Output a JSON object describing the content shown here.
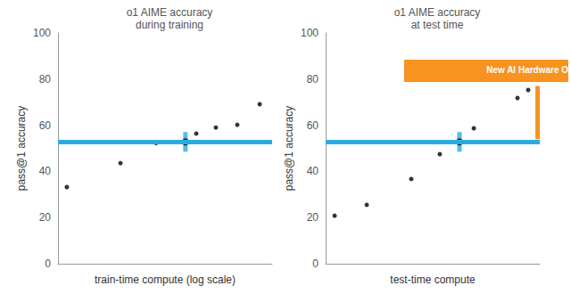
{
  "chart_data": [
    {
      "type": "scatter",
      "title": "o1 AIME accuracy\nduring training",
      "x_label": "train-time compute (log scale)",
      "y_label": "pass@1 accuracy",
      "log": "x",
      "x": [
        1.33,
        7.5,
        23.7,
        61,
        86.6,
        163,
        325,
        670
      ],
      "xlim": [
        1,
        1000
      ],
      "ylim": [
        0,
        100
      ],
      "yticks": [
        0,
        20,
        40,
        60,
        80,
        100
      ],
      "tick_labels": "y",
      "grid": false,
      "hline": 52.8,
      "series": [
        {
          "color": "#000000",
          "marker": "circle",
          "values": [
            33.2,
            43.6,
            52.3,
            52.8,
            56.4,
            59,
            60.2,
            69.1
          ]
        },
        {
          "color": "#29abe2",
          "marker": "crosshair",
          "values": [
            null,
            null,
            null,
            52.8,
            null,
            null,
            null,
            null
          ]
        }
      ]
    },
    {
      "type": "scatter",
      "title": "o1 AIME accuracy\nat test time",
      "x_label": "test-time compute",
      "y_label": "pass@1 accuracy",
      "x": [
        4.2,
        19.2,
        40,
        53.3,
        62.5,
        69.2,
        89.6,
        94.6
      ],
      "xlim": [
        0,
        100
      ],
      "ylim": [
        0,
        100
      ],
      "yticks": [
        0,
        20,
        40,
        60,
        80,
        100
      ],
      "tick_labels": "y",
      "grid": false,
      "hline": 52.8,
      "series": [
        {
          "color": "#000000",
          "marker": "circle",
          "values": [
            20.8,
            25.5,
            36.7,
            47.5,
            52.8,
            58.7,
            71.8,
            75.3
          ]
        },
        {
          "color": "#29abe2",
          "marker": "crosshair",
          "values": [
            null,
            null,
            null,
            null,
            52.8,
            null,
            null,
            null
          ]
        }
      ],
      "annotation": {
        "text": "New AI Hardware Opportunities",
        "color": "#f7931e",
        "x": 99,
        "y": [
          54,
          77
        ]
      }
    }
  ]
}
